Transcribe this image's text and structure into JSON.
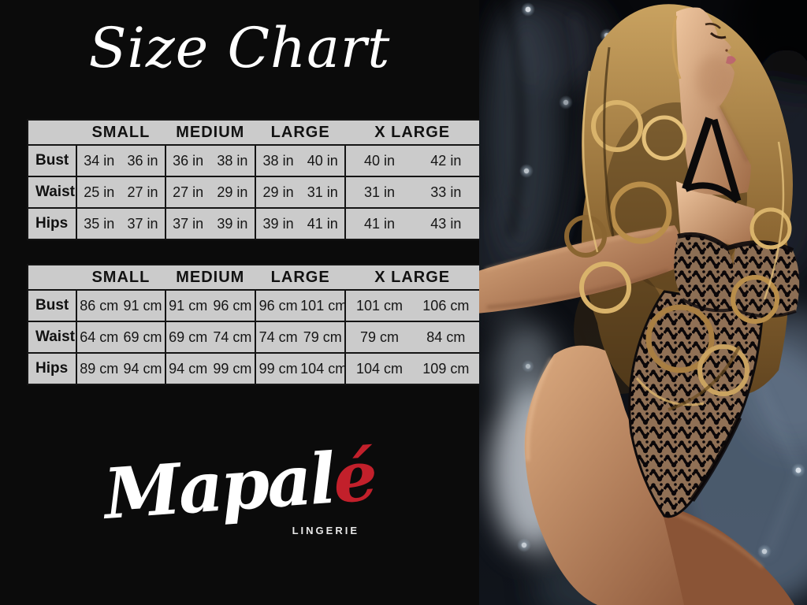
{
  "title": "Size Chart",
  "brand": {
    "name_main": "Mapal",
    "name_accent": "é",
    "subtitle": "LINGERIE"
  },
  "tables": [
    {
      "unit": "inches",
      "sizes": [
        "SMALL",
        "MEDIUM",
        "LARGE",
        "X LARGE"
      ],
      "rows": [
        {
          "label": "Bust",
          "values": [
            "34 in",
            "36 in",
            "36 in",
            "38 in",
            "38 in",
            "40 in",
            "40 in",
            "42 in"
          ]
        },
        {
          "label": "Waist",
          "values": [
            "25 in",
            "27 in",
            "27 in",
            "29 in",
            "29 in",
            "31 in",
            "31 in",
            "33 in"
          ]
        },
        {
          "label": "Hips",
          "values": [
            "35 in",
            "37 in",
            "37 in",
            "39 in",
            "39 in",
            "41 in",
            "41 in",
            "43 in"
          ]
        }
      ]
    },
    {
      "unit": "centimeters",
      "sizes": [
        "SMALL",
        "MEDIUM",
        "LARGE",
        "X LARGE"
      ],
      "rows": [
        {
          "label": "Bust",
          "values": [
            "86 cm",
            "91 cm",
            "91 cm",
            "96 cm",
            "96 cm",
            "101 cm",
            "101 cm",
            "106 cm"
          ]
        },
        {
          "label": "Waist",
          "values": [
            "64 cm",
            "69 cm",
            "69 cm",
            "74 cm",
            "74 cm",
            "79 cm",
            "79 cm",
            "84 cm"
          ]
        },
        {
          "label": "Hips",
          "values": [
            "89 cm",
            "94 cm",
            "94 cm",
            "99 cm",
            "99 cm",
            "104 cm",
            "104 cm",
            "109 cm"
          ]
        }
      ]
    }
  ],
  "colors": {
    "background": "#0b0b0b",
    "table_background": "#cbcbcb",
    "table_border": "#141414",
    "table_text": "#161616",
    "title_text": "#ffffff",
    "accent_red": "#c2202b",
    "lingerie_text": "#e8e8e8"
  }
}
